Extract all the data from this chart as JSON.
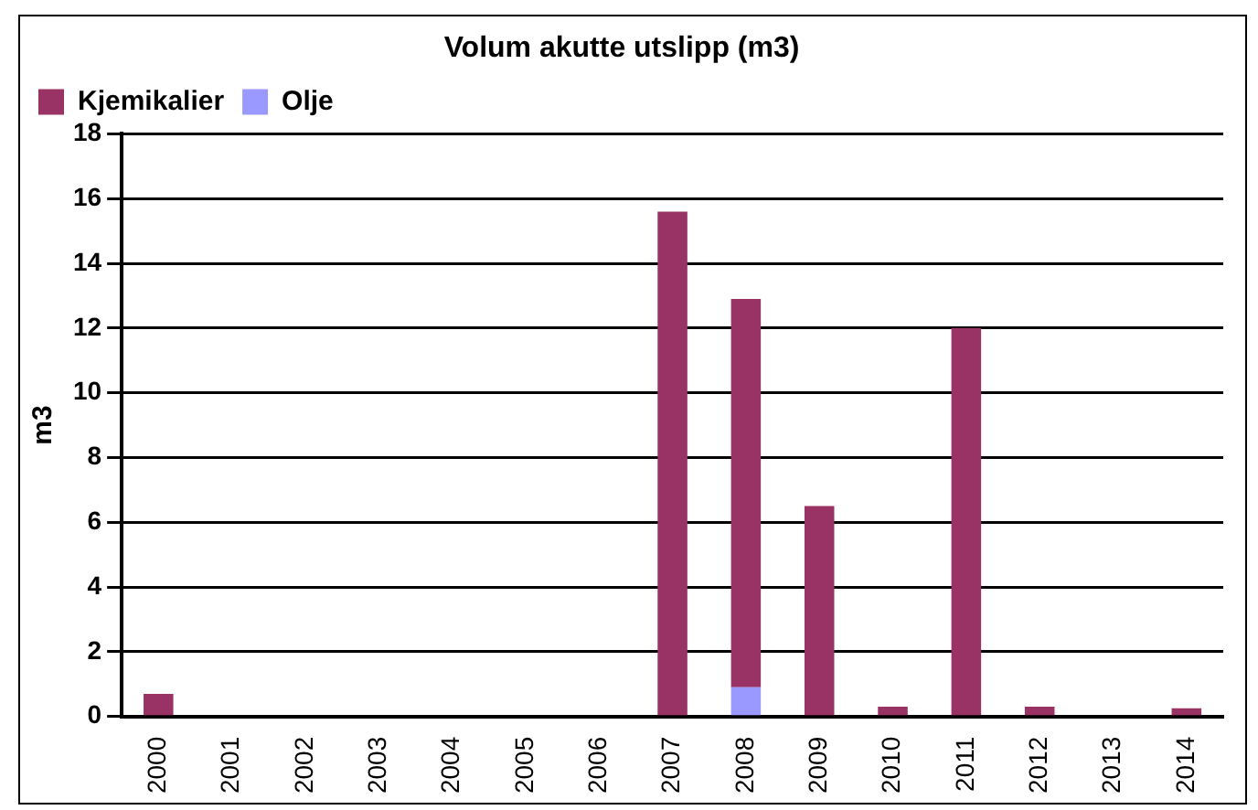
{
  "chart_data": {
    "type": "bar",
    "title": "Volum akutte utslipp (m3)",
    "ylabel": "m3",
    "categories": [
      "2000",
      "2001",
      "2002",
      "2003",
      "2004",
      "2005",
      "2006",
      "2007",
      "2008",
      "2009",
      "2010",
      "2011",
      "2012",
      "2013",
      "2014"
    ],
    "series": [
      {
        "name": "Olje",
        "color": "#9999ff",
        "values": [
          0,
          0,
          0,
          0,
          0,
          0,
          0,
          0,
          0.9,
          0,
          0,
          0,
          0,
          0,
          0
        ]
      },
      {
        "name": "Kjemikalier",
        "color": "#993366",
        "values": [
          0.7,
          0,
          0,
          0,
          0,
          null,
          0,
          15.6,
          12.0,
          6.5,
          0.3,
          12.0,
          0.3,
          0,
          0.25
        ]
      }
    ],
    "stacked": true,
    "ylim": [
      0,
      18
    ],
    "yticks": [
      0,
      2,
      4,
      6,
      8,
      10,
      12,
      14,
      16,
      18
    ],
    "grid": "y",
    "legend": "top left"
  }
}
